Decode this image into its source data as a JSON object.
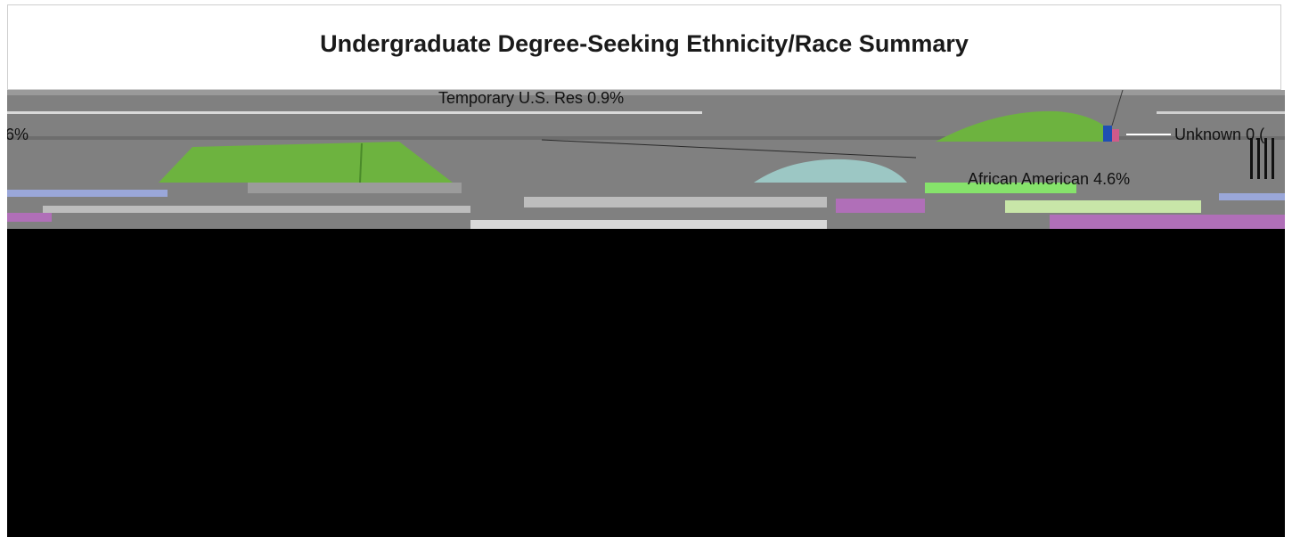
{
  "chart_data": {
    "type": "pie",
    "title": "Undergraduate Degree-Seeking Ethnicity/Race Summary",
    "visible_labels": [
      {
        "label": "Temporary U.S. Res",
        "value": "0.9%"
      },
      {
        "label": "Unknown",
        "value": "0.("
      },
      {
        "label": "African American",
        "value": "4.6%"
      },
      {
        "label": "",
        "value": "6%"
      }
    ]
  },
  "colors": {
    "green": "#6db33f",
    "blue": "#1f4fb3",
    "pink": "#d05a8a",
    "teal": "#9cc7c4",
    "purple": "#b06fb8",
    "light_green": "#c8e6a8",
    "gray": "#808080",
    "black": "#000000"
  }
}
